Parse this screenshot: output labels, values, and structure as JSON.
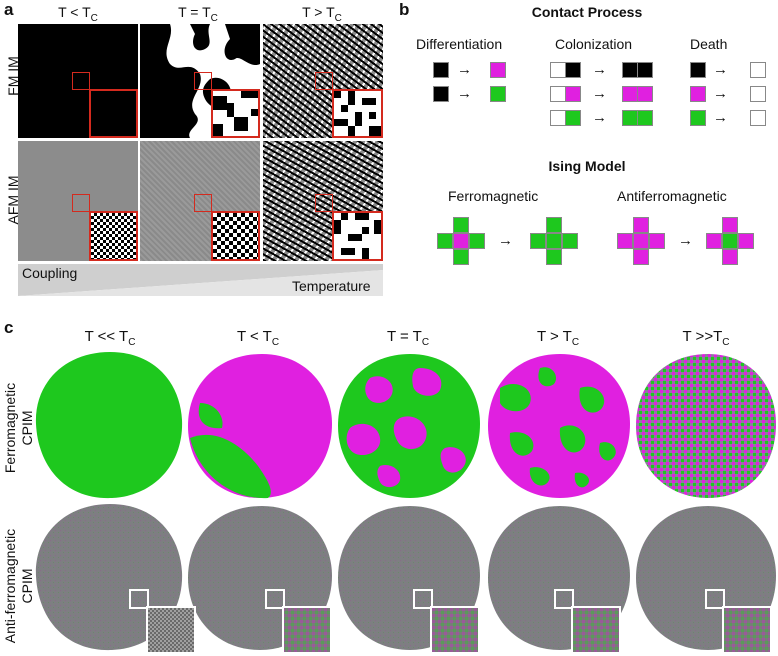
{
  "panel_labels": {
    "a": "a",
    "b": "b",
    "c": "c"
  },
  "panel_a": {
    "columns": [
      {
        "pre": "T < T",
        "sub": "C"
      },
      {
        "pre": "T = T",
        "sub": "C"
      },
      {
        "pre": "T > T",
        "sub": "C"
      }
    ],
    "rows": [
      "FM IM",
      "AFM IM"
    ],
    "bar": {
      "left": "Coupling",
      "right": "Temperature"
    }
  },
  "panel_b": {
    "contact_title": "Contact Process",
    "contact_labels": [
      "Differentiation",
      "Colonization",
      "Death"
    ],
    "ising_title": "Ising Model",
    "ising_labels": [
      "Ferromagnetic",
      "Antiferromagnetic"
    ]
  },
  "panel_c": {
    "columns": [
      {
        "pre": "T << T",
        "sub": "C"
      },
      {
        "pre": "T < T",
        "sub": "C"
      },
      {
        "pre": "T = T",
        "sub": "C"
      },
      {
        "pre": "T > T",
        "sub": "C"
      },
      {
        "pre": "T >>T",
        "sub": "C"
      }
    ],
    "rows": [
      {
        "line1": "Ferromagnetic",
        "line2": "CPIM"
      },
      {
        "line1": "Anti-ferromagnetic",
        "line2": "CPIM"
      }
    ]
  },
  "colors": {
    "magenta": "#e020e0",
    "green": "#1ec81e",
    "black": "#000000",
    "red": "#d42a1e",
    "gray": "#808080"
  }
}
